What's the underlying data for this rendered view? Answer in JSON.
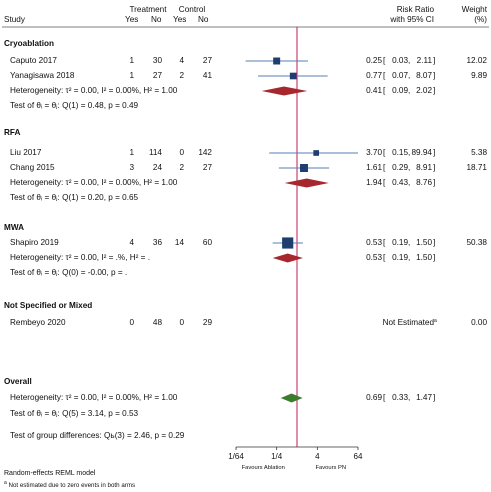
{
  "header": {
    "study": "Study",
    "treatment": "Treatment",
    "control": "Control",
    "yes": "Yes",
    "no": "No",
    "risk_ratio": "Risk Ratio",
    "ci": "with 95% CI",
    "weight": "Weight",
    "pct": "(%)"
  },
  "rows": [
    {
      "kind": "group",
      "label": "Cryoablation"
    },
    {
      "kind": "study",
      "label": "Caputo 2017",
      "ty": "1",
      "tn": "30",
      "cy": "4",
      "cn": "27",
      "rr": "0.25",
      "lo": "0.03",
      "hi": "2.11",
      "w": "12.02",
      "rr_v": 0.25,
      "lo_v": 0.03,
      "hi_v": 2.11,
      "w_v": 12.02
    },
    {
      "kind": "study",
      "label": "Yanagisawa 2018",
      "ty": "1",
      "tn": "27",
      "cy": "2",
      "cn": "41",
      "rr": "0.77",
      "lo": "0.07",
      "hi": "8.07",
      "w": "9.89",
      "rr_v": 0.77,
      "lo_v": 0.07,
      "hi_v": 8.07,
      "w_v": 9.89
    },
    {
      "kind": "het",
      "label": "Heterogeneity: τ² = 0.00, I² = 0.00%, H² = 1.00",
      "rr": "0.41",
      "lo": "0.09",
      "hi": "2.02",
      "rr_v": 0.41,
      "lo_v": 0.09,
      "hi_v": 2.02
    },
    {
      "kind": "test",
      "label": "Test of θᵢ = θⱼ: Q(1) = 0.48, p = 0.49"
    },
    {
      "kind": "group",
      "label": "RFA"
    },
    {
      "kind": "study",
      "label": "Liu 2017",
      "ty": "1",
      "tn": "114",
      "cy": "0",
      "cn": "142",
      "rr": "3.70",
      "lo": "0.15",
      "hi": "89.94",
      "w": "5.38",
      "rr_v": 3.7,
      "lo_v": 0.15,
      "hi_v": 89.94,
      "w_v": 5.38
    },
    {
      "kind": "study",
      "label": "Chang 2015",
      "ty": "3",
      "tn": "24",
      "cy": "2",
      "cn": "27",
      "rr": "1.61",
      "lo": "0.29",
      "hi": "8.91",
      "w": "18.71",
      "rr_v": 1.61,
      "lo_v": 0.29,
      "hi_v": 8.91,
      "w_v": 18.71
    },
    {
      "kind": "het",
      "label": "Heterogeneity: τ² = 0.00, I² = 0.00%, H² = 1.00",
      "rr": "1.94",
      "lo": "0.43",
      "hi": "8.76",
      "rr_v": 1.94,
      "lo_v": 0.43,
      "hi_v": 8.76
    },
    {
      "kind": "test",
      "label": "Test of θᵢ = θⱼ: Q(1) = 0.20, p = 0.65"
    },
    {
      "kind": "group",
      "label": "MWA"
    },
    {
      "kind": "study",
      "label": "Shapiro 2019",
      "ty": "4",
      "tn": "36",
      "cy": "14",
      "cn": "60",
      "rr": "0.53",
      "lo": "0.19",
      "hi": "1.50",
      "w": "50.38",
      "rr_v": 0.53,
      "lo_v": 0.19,
      "hi_v": 1.5,
      "w_v": 50.38
    },
    {
      "kind": "het",
      "label": "Heterogeneity: τ² = 0.00, I² = .%, H² = .",
      "rr": "0.53",
      "lo": "0.19",
      "hi": "1.50",
      "rr_v": 0.53,
      "lo_v": 0.19,
      "hi_v": 1.5
    },
    {
      "kind": "test",
      "label": "Test of θᵢ = θⱼ: Q(0) = -0.00, p = ."
    },
    {
      "kind": "group",
      "label": "Not Specified or Mixed"
    },
    {
      "kind": "ne",
      "label": "Rembeyo 2020",
      "ty": "0",
      "tn": "48",
      "cy": "0",
      "cn": "29",
      "note": "Not Estimated",
      "w": "0.00"
    },
    {
      "kind": "group",
      "label": "Overall"
    },
    {
      "kind": "het",
      "label": "Heterogeneity: τ² = 0.00, I² = 0.00%, H² = 1.00",
      "rr": "0.69",
      "lo": "0.33",
      "hi": "1.47",
      "rr_v": 0.69,
      "lo_v": 0.33,
      "hi_v": 1.47,
      "overall": true
    },
    {
      "kind": "test",
      "label": "Test of θᵢ = θⱼ: Q(5) = 3.14, p = 0.53"
    },
    {
      "kind": "test",
      "label": "Test of group differences: Qь(3) = 2.46, p = 0.29"
    }
  ],
  "axis": {
    "ticks": [
      {
        "v": 0.015625,
        "label": "1/64"
      },
      {
        "v": 0.25,
        "label": "1/4"
      },
      {
        "v": 4,
        "label": "4"
      },
      {
        "v": 64,
        "label": "64"
      }
    ],
    "favours_left": "Favours Ablation",
    "favours_right": "Favours PN"
  },
  "footer": {
    "model": "Random-effects REML model",
    "note_mark": "a",
    "note": " Not estimated due to zero events in both arms"
  },
  "chart_data": {
    "type": "forest",
    "measure": "Risk Ratio",
    "x_scale": "log",
    "xlim": [
      0.015625,
      64
    ],
    "reference_line": 1,
    "columns": [
      "Study",
      "Treatment Yes",
      "Treatment No",
      "Control Yes",
      "Control No",
      "Risk Ratio with 95% CI",
      "Weight (%)"
    ],
    "subgroups": [
      {
        "name": "Cryoablation",
        "studies": [
          {
            "study": "Caputo 2017",
            "rr": 0.25,
            "ci": [
              0.03,
              2.11
            ],
            "weight": 12.02
          },
          {
            "study": "Yanagisawa 2018",
            "rr": 0.77,
            "ci": [
              0.07,
              8.07
            ],
            "weight": 9.89
          }
        ],
        "pooled": {
          "rr": 0.41,
          "ci": [
            0.09,
            2.02
          ]
        }
      },
      {
        "name": "RFA",
        "studies": [
          {
            "study": "Liu 2017",
            "rr": 3.7,
            "ci": [
              0.15,
              89.94
            ],
            "weight": 5.38
          },
          {
            "study": "Chang 2015",
            "rr": 1.61,
            "ci": [
              0.29,
              8.91
            ],
            "weight": 18.71
          }
        ],
        "pooled": {
          "rr": 1.94,
          "ci": [
            0.43,
            8.76
          ]
        }
      },
      {
        "name": "MWA",
        "studies": [
          {
            "study": "Shapiro 2019",
            "rr": 0.53,
            "ci": [
              0.19,
              1.5
            ],
            "weight": 50.38
          }
        ],
        "pooled": {
          "rr": 0.53,
          "ci": [
            0.19,
            1.5
          ]
        }
      },
      {
        "name": "Not Specified or Mixed",
        "studies": [
          {
            "study": "Rembeyo 2020",
            "rr": null,
            "ci": null,
            "weight": 0.0
          }
        ]
      }
    ],
    "overall": {
      "rr": 0.69,
      "ci": [
        0.33,
        1.47
      ]
    },
    "colors": {
      "box": "#1f3d6e",
      "ci_line": "#5a7fb5",
      "subgroup_diamond": "#a6282e",
      "overall_diamond": "#3a7d2c",
      "null_line": "#c2185b"
    }
  }
}
